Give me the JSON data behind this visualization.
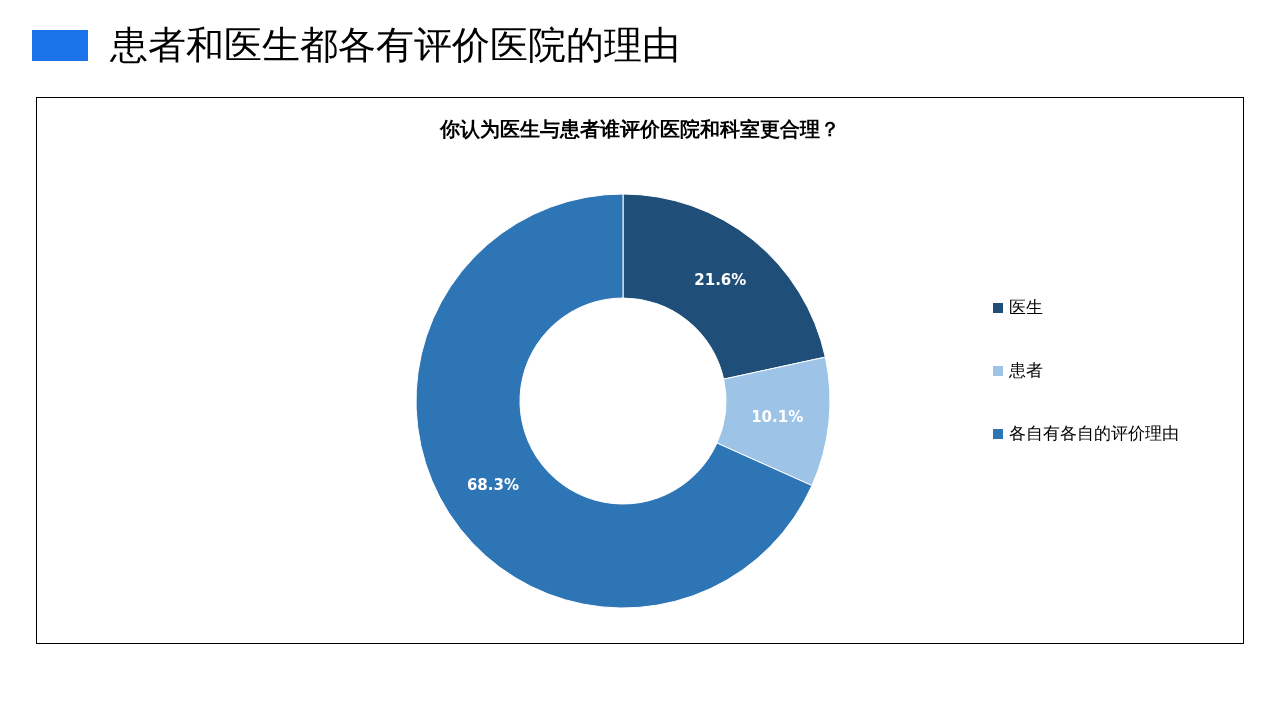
{
  "chart_data": {
    "type": "donut",
    "title": "患者和医生都各有评价医院的理由",
    "subtitle": "你认为医生与患者谁评价医院和科室更合理？",
    "categories": [
      "医生",
      "患者",
      "各自有各自的评价理由"
    ],
    "values": [
      21.6,
      10.1,
      68.3
    ],
    "colors": [
      "#1f4e79",
      "#9dc3e6",
      "#2e75b6"
    ],
    "value_labels": [
      "21.6%",
      "10.1%",
      "68.3%"
    ],
    "legend": "right"
  }
}
